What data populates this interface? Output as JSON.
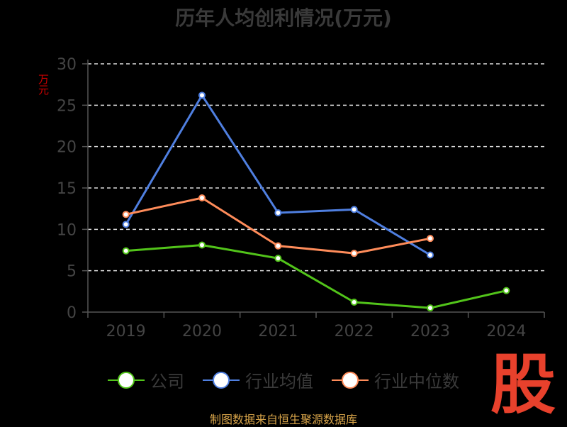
{
  "header": {
    "title": "历年人均创利情况(万元)"
  },
  "axis": {
    "y_unit": "万元"
  },
  "colors": {
    "company": "#52c41a",
    "industry_avg": "#4f7fe0",
    "industry_median": "#ff8c5a",
    "grid": "#dddddd",
    "axis": "#555555",
    "tick_text": "#444444"
  },
  "chart_data": {
    "type": "line",
    "title": "历年人均创利情况(万元)",
    "xlabel": "",
    "ylabel": "万元",
    "ylim": [
      0,
      30
    ],
    "yticks": [
      0,
      5,
      10,
      15,
      20,
      25,
      30
    ],
    "categories": [
      "2019",
      "2020",
      "2021",
      "2022",
      "2023",
      "2024"
    ],
    "grid": true,
    "legend_position": "bottom",
    "series": [
      {
        "name": "公司",
        "color": "#52c41a",
        "values": [
          7.4,
          8.1,
          6.5,
          1.2,
          0.5,
          2.6
        ]
      },
      {
        "name": "行业均值",
        "color": "#4f7fe0",
        "values": [
          10.6,
          26.2,
          12.0,
          12.4,
          6.9,
          null
        ]
      },
      {
        "name": "行业中位数",
        "color": "#ff8c5a",
        "values": [
          11.8,
          13.8,
          8.0,
          7.1,
          8.9,
          null
        ]
      }
    ]
  },
  "legend": {
    "items": [
      {
        "label": "公司",
        "color": "#52c41a"
      },
      {
        "label": "行业均值",
        "color": "#4f7fe0"
      },
      {
        "label": "行业中位数",
        "color": "#ff8c5a"
      }
    ]
  },
  "footer": {
    "source": "制图数据来自恒生聚源数据库",
    "logo_text": "股"
  }
}
